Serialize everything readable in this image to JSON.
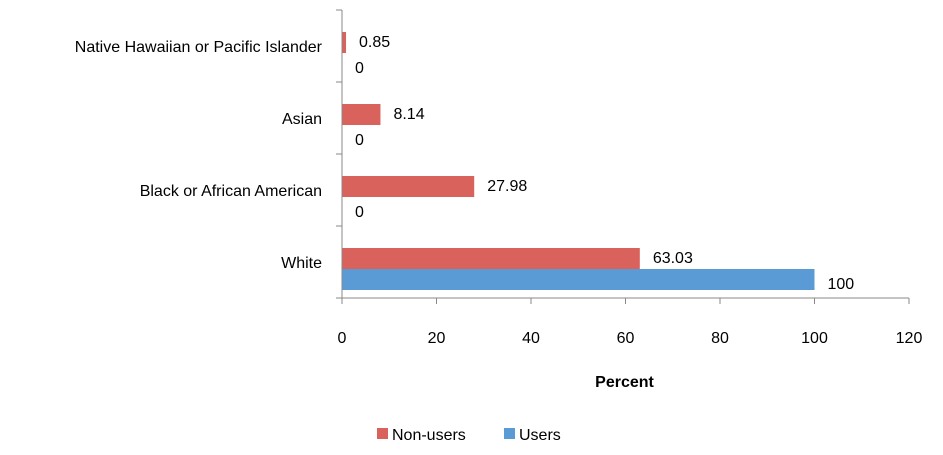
{
  "chart_data": {
    "type": "bar",
    "orientation": "horizontal",
    "categories": [
      "Native Hawaiian or Pacific Islander",
      "Asian",
      "Black or African American",
      "White"
    ],
    "series": [
      {
        "name": "Non-users",
        "values": [
          0.85,
          8.14,
          27.98,
          63.03
        ],
        "color": "#d9625d"
      },
      {
        "name": "Users",
        "values": [
          0,
          0,
          0,
          100
        ],
        "color": "#5b9bd5"
      }
    ],
    "xlabel": "Percent",
    "xlim": [
      0,
      120
    ],
    "xticks": [
      0,
      20,
      40,
      60,
      80,
      100,
      120
    ],
    "grid": false,
    "legend_position": "bottom",
    "data_labels": true
  }
}
